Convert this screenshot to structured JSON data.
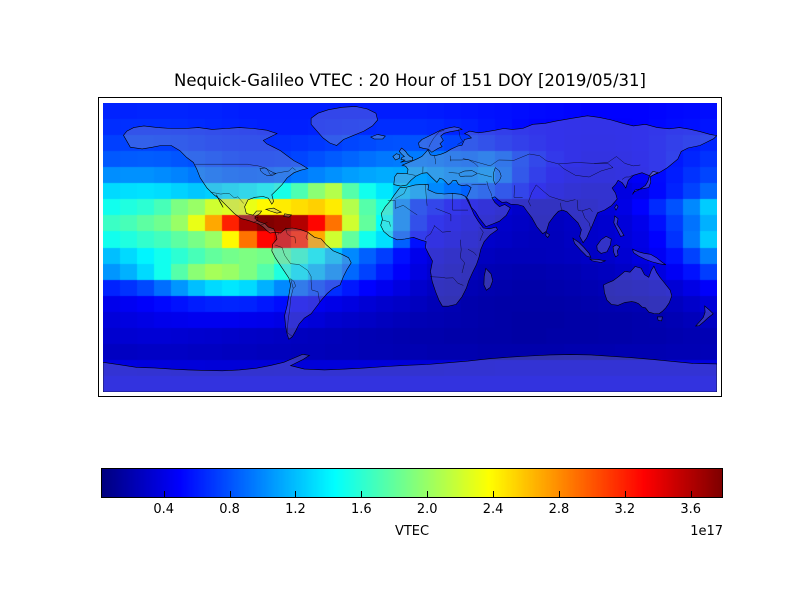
{
  "figure": {
    "title": "Nequick-Galileo VTEC : 20 Hour of 151 DOY [2019/05/31]",
    "background_color": "#ffffff"
  },
  "chart_data": {
    "type": "heatmap",
    "title": "Nequick-Galileo VTEC : 20 Hour of 151 DOY [2019/05/31]",
    "description": "World map (equirectangular) of modeled vertical total electron content; hotspot over Central America / Caribbean, secondary crest over the south-east Pacific, low values over the night-side eastern hemisphere.",
    "projection": "equirectangular",
    "lon_range": [
      -180,
      180
    ],
    "lat_range": [
      -85,
      85
    ],
    "grid_cols": 36,
    "grid_rows": 18,
    "values_unit": "electrons/m^2, in units of 1e17",
    "colormap": "jet",
    "vmin": 0.025,
    "vmax": 3.79,
    "grid_lines": false,
    "legend": "colorbar-bottom",
    "colorbar": {
      "label": "VTEC",
      "offset_text": "1e17",
      "orientation": "horizontal",
      "tick_labels": [
        "0.4",
        "0.8",
        "1.2",
        "1.6",
        "2.0",
        "2.4",
        "2.8",
        "3.2",
        "3.6"
      ],
      "tick_values": [
        0.4,
        0.8,
        1.2,
        1.6,
        2.0,
        2.4,
        2.8,
        3.2,
        3.6
      ]
    },
    "values": [
      [
        0.62,
        0.62,
        0.63,
        0.63,
        0.63,
        0.62,
        0.62,
        0.61,
        0.6,
        0.6,
        0.6,
        0.6,
        0.6,
        0.6,
        0.6,
        0.6,
        0.6,
        0.6,
        0.6,
        0.59,
        0.58,
        0.57,
        0.56,
        0.55,
        0.54,
        0.53,
        0.52,
        0.51,
        0.5,
        0.5,
        0.5,
        0.5,
        0.51,
        0.52,
        0.53,
        0.54
      ],
      [
        0.66,
        0.67,
        0.67,
        0.67,
        0.66,
        0.65,
        0.64,
        0.63,
        0.62,
        0.61,
        0.61,
        0.61,
        0.62,
        0.63,
        0.64,
        0.65,
        0.66,
        0.66,
        0.66,
        0.65,
        0.63,
        0.61,
        0.58,
        0.56,
        0.53,
        0.51,
        0.5,
        0.49,
        0.48,
        0.48,
        0.49,
        0.5,
        0.52,
        0.54,
        0.55,
        0.57
      ],
      [
        0.73,
        0.74,
        0.74,
        0.73,
        0.72,
        0.7,
        0.68,
        0.67,
        0.66,
        0.66,
        0.67,
        0.68,
        0.7,
        0.72,
        0.75,
        0.77,
        0.79,
        0.8,
        0.8,
        0.78,
        0.75,
        0.71,
        0.66,
        0.61,
        0.57,
        0.53,
        0.5,
        0.48,
        0.47,
        0.47,
        0.48,
        0.5,
        0.53,
        0.57,
        0.6,
        0.63
      ],
      [
        0.82,
        0.83,
        0.84,
        0.83,
        0.81,
        0.79,
        0.76,
        0.73,
        0.71,
        0.71,
        0.72,
        0.75,
        0.79,
        0.83,
        0.87,
        0.91,
        0.94,
        0.95,
        0.95,
        0.93,
        0.9,
        0.88,
        0.92,
        0.85,
        0.72,
        0.61,
        0.53,
        0.48,
        0.45,
        0.45,
        0.46,
        0.49,
        0.53,
        0.58,
        0.63,
        0.68
      ],
      [
        1.02,
        1.03,
        1.03,
        1.01,
        0.98,
        0.94,
        0.9,
        0.87,
        0.85,
        0.86,
        0.89,
        0.93,
        0.98,
        1.03,
        1.08,
        1.11,
        1.13,
        1.12,
        1.1,
        1.06,
        1.01,
        1.0,
        1.05,
        0.9,
        0.7,
        0.57,
        0.48,
        0.44,
        0.42,
        0.42,
        0.44,
        0.47,
        0.53,
        0.6,
        0.68,
        0.75
      ],
      [
        1.3,
        1.32,
        1.33,
        1.31,
        1.27,
        1.23,
        1.26,
        1.31,
        1.36,
        1.42,
        1.52,
        1.72,
        1.95,
        2.1,
        1.75,
        1.5,
        1.35,
        1.2,
        1.1,
        1.0,
        0.92,
        0.85,
        0.8,
        0.7,
        0.6,
        0.5,
        0.42,
        0.38,
        0.36,
        0.36,
        0.38,
        0.43,
        0.52,
        0.62,
        0.74,
        0.88
      ],
      [
        1.5,
        1.55,
        1.6,
        1.7,
        1.9,
        2.0,
        2.2,
        2.25,
        2.3,
        2.4,
        2.45,
        2.5,
        2.55,
        2.45,
        2.1,
        1.75,
        1.55,
        1.0,
        0.7,
        0.6,
        0.52,
        0.46,
        0.4,
        0.35,
        0.3,
        0.28,
        0.28,
        0.3,
        0.32,
        0.35,
        0.4,
        0.5,
        0.65,
        0.8,
        1.0,
        1.25
      ],
      [
        1.65,
        1.7,
        1.78,
        1.85,
        2.0,
        2.3,
        2.7,
        3.2,
        3.65,
        3.8,
        3.75,
        3.6,
        3.3,
        2.9,
        2.2,
        1.8,
        1.45,
        1.0,
        0.65,
        0.52,
        0.45,
        0.4,
        0.35,
        0.3,
        0.28,
        0.26,
        0.26,
        0.28,
        0.3,
        0.32,
        0.36,
        0.42,
        0.55,
        0.72,
        0.92,
        1.15
      ],
      [
        1.5,
        1.55,
        1.62,
        1.68,
        1.78,
        1.88,
        2.0,
        2.4,
        2.9,
        3.3,
        3.45,
        3.2,
        2.7,
        2.2,
        1.8,
        1.5,
        1.32,
        0.85,
        0.55,
        0.45,
        0.4,
        0.35,
        0.3,
        0.28,
        0.26,
        0.25,
        0.25,
        0.27,
        0.3,
        0.32,
        0.35,
        0.4,
        0.5,
        0.68,
        0.95,
        1.25
      ],
      [
        1.2,
        1.3,
        1.4,
        1.5,
        1.6,
        1.7,
        1.8,
        1.86,
        1.9,
        1.86,
        1.76,
        1.6,
        1.4,
        1.2,
        1.0,
        0.85,
        0.72,
        0.55,
        0.42,
        0.36,
        0.32,
        0.28,
        0.26,
        0.24,
        0.24,
        0.24,
        0.25,
        0.26,
        0.28,
        0.3,
        0.33,
        0.38,
        0.46,
        0.56,
        0.74,
        0.96
      ],
      [
        1.05,
        1.15,
        1.3,
        1.5,
        1.75,
        1.95,
        2.05,
        2.0,
        1.9,
        1.75,
        1.55,
        1.35,
        1.18,
        1.02,
        0.88,
        0.74,
        0.6,
        0.48,
        0.38,
        0.32,
        0.28,
        0.25,
        0.22,
        0.21,
        0.2,
        0.2,
        0.21,
        0.22,
        0.24,
        0.26,
        0.29,
        0.33,
        0.38,
        0.46,
        0.56,
        0.72
      ],
      [
        0.62,
        0.68,
        0.76,
        0.9,
        1.05,
        1.2,
        1.3,
        1.35,
        1.3,
        1.15,
        1.0,
        0.88,
        0.76,
        0.66,
        0.58,
        0.5,
        0.44,
        0.38,
        0.31,
        0.27,
        0.25,
        0.22,
        0.2,
        0.19,
        0.18,
        0.18,
        0.19,
        0.2,
        0.21,
        0.23,
        0.25,
        0.27,
        0.3,
        0.34,
        0.4,
        0.48
      ],
      [
        0.42,
        0.45,
        0.48,
        0.52,
        0.56,
        0.6,
        0.62,
        0.63,
        0.62,
        0.58,
        0.54,
        0.49,
        0.44,
        0.41,
        0.38,
        0.34,
        0.31,
        0.29,
        0.26,
        0.23,
        0.21,
        0.19,
        0.18,
        0.17,
        0.17,
        0.17,
        0.17,
        0.18,
        0.19,
        0.2,
        0.21,
        0.22,
        0.24,
        0.26,
        0.3,
        0.35
      ],
      [
        0.36,
        0.38,
        0.4,
        0.42,
        0.43,
        0.44,
        0.44,
        0.44,
        0.43,
        0.42,
        0.4,
        0.38,
        0.35,
        0.32,
        0.3,
        0.28,
        0.26,
        0.24,
        0.22,
        0.21,
        0.2,
        0.19,
        0.18,
        0.17,
        0.16,
        0.16,
        0.16,
        0.17,
        0.17,
        0.18,
        0.18,
        0.19,
        0.2,
        0.22,
        0.24,
        0.27
      ],
      [
        0.32,
        0.33,
        0.34,
        0.34,
        0.33,
        0.32,
        0.31,
        0.3,
        0.29,
        0.28,
        0.27,
        0.26,
        0.25,
        0.24,
        0.23,
        0.22,
        0.21,
        0.2,
        0.19,
        0.19,
        0.18,
        0.18,
        0.17,
        0.17,
        0.16,
        0.16,
        0.17,
        0.17,
        0.17,
        0.18,
        0.18,
        0.19,
        0.19,
        0.2,
        0.21,
        0.22
      ],
      [
        0.27,
        0.27,
        0.28,
        0.28,
        0.28,
        0.27,
        0.27,
        0.26,
        0.26,
        0.25,
        0.25,
        0.24,
        0.24,
        0.23,
        0.23,
        0.22,
        0.22,
        0.21,
        0.21,
        0.2,
        0.2,
        0.2,
        0.19,
        0.19,
        0.19,
        0.19,
        0.19,
        0.2,
        0.2,
        0.2,
        0.21,
        0.21,
        0.21,
        0.22,
        0.22,
        0.23
      ],
      [
        0.38,
        0.38,
        0.37,
        0.37,
        0.36,
        0.36,
        0.35,
        0.35,
        0.35,
        0.35,
        0.36,
        0.36,
        0.36,
        0.36,
        0.36,
        0.36,
        0.36,
        0.36,
        0.36,
        0.36,
        0.37,
        0.37,
        0.37,
        0.38,
        0.38,
        0.38,
        0.38,
        0.38,
        0.38,
        0.38,
        0.38,
        0.38,
        0.38,
        0.38,
        0.38,
        0.38
      ],
      [
        0.44,
        0.44,
        0.44,
        0.44,
        0.44,
        0.44,
        0.44,
        0.44,
        0.44,
        0.44,
        0.44,
        0.44,
        0.44,
        0.44,
        0.44,
        0.44,
        0.44,
        0.44,
        0.44,
        0.44,
        0.44,
        0.44,
        0.44,
        0.44,
        0.44,
        0.44,
        0.44,
        0.44,
        0.44,
        0.44,
        0.44,
        0.44,
        0.44,
        0.44,
        0.44,
        0.44
      ]
    ]
  }
}
